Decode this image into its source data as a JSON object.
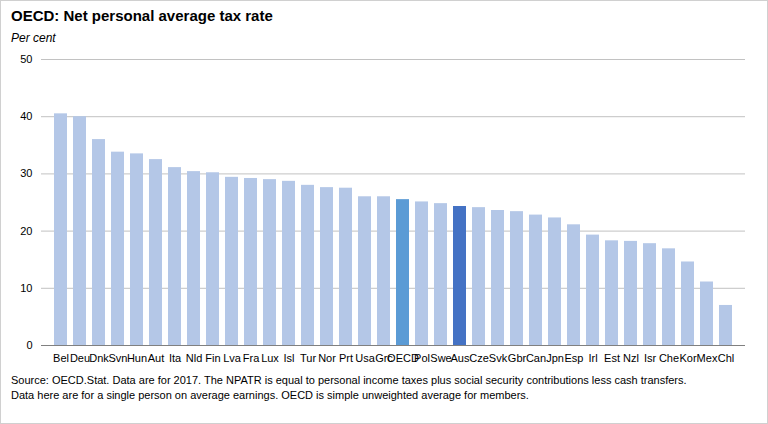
{
  "chart_data": {
    "type": "bar",
    "title": "OECD: Net personal average tax rate",
    "subtitle": "Per cent",
    "notes": [
      "Source: OECD.Stat.  Data are for 2017.  The NPATR is equal to personal income taxes plus social security contributions less cash transfers.",
      "Data here are for a single person on average earnings.  OECD is simple unweighted average for members."
    ],
    "categories": [
      "Bel",
      "Deu",
      "Dnk",
      "Svn",
      "Hun",
      "Aut",
      "Ita",
      "Nld",
      "Fin",
      "Lva",
      "Fra",
      "Lux",
      "Isl",
      "Tur",
      "Nor",
      "Prt",
      "Usa",
      "Grc",
      "OECD",
      "Pol",
      "Swe",
      "Aus",
      "Cze",
      "Svk",
      "Gbr",
      "Can",
      "Jpn",
      "Esp",
      "Irl",
      "Est",
      "Nzl",
      "Isr",
      "Che",
      "Kor",
      "Mex",
      "Chl"
    ],
    "values": [
      40.5,
      40.0,
      36.0,
      33.8,
      33.5,
      32.5,
      31.1,
      30.4,
      30.2,
      29.4,
      29.2,
      29.0,
      28.7,
      28.0,
      27.6,
      27.5,
      26.0,
      26.0,
      25.5,
      25.1,
      24.8,
      24.3,
      24.1,
      23.6,
      23.4,
      22.8,
      22.3,
      21.1,
      19.3,
      18.3,
      18.2,
      17.8,
      16.9,
      14.6,
      11.1,
      7.0
    ],
    "colors": [
      "#b4c7e7",
      "#b4c7e7",
      "#b4c7e7",
      "#b4c7e7",
      "#b4c7e7",
      "#b4c7e7",
      "#b4c7e7",
      "#b4c7e7",
      "#b4c7e7",
      "#b4c7e7",
      "#b4c7e7",
      "#b4c7e7",
      "#b4c7e7",
      "#b4c7e7",
      "#b4c7e7",
      "#b4c7e7",
      "#b4c7e7",
      "#b4c7e7",
      "#5b9bd5",
      "#b4c7e7",
      "#b4c7e7",
      "#4472c4",
      "#b4c7e7",
      "#b4c7e7",
      "#b4c7e7",
      "#b4c7e7",
      "#b4c7e7",
      "#b4c7e7",
      "#b4c7e7",
      "#b4c7e7",
      "#b4c7e7",
      "#b4c7e7",
      "#b4c7e7",
      "#b4c7e7",
      "#b4c7e7",
      "#b4c7e7"
    ],
    "ylim": [
      0,
      50
    ],
    "yticks": [
      0,
      10,
      20,
      30,
      40,
      50
    ],
    "grid": true
  }
}
